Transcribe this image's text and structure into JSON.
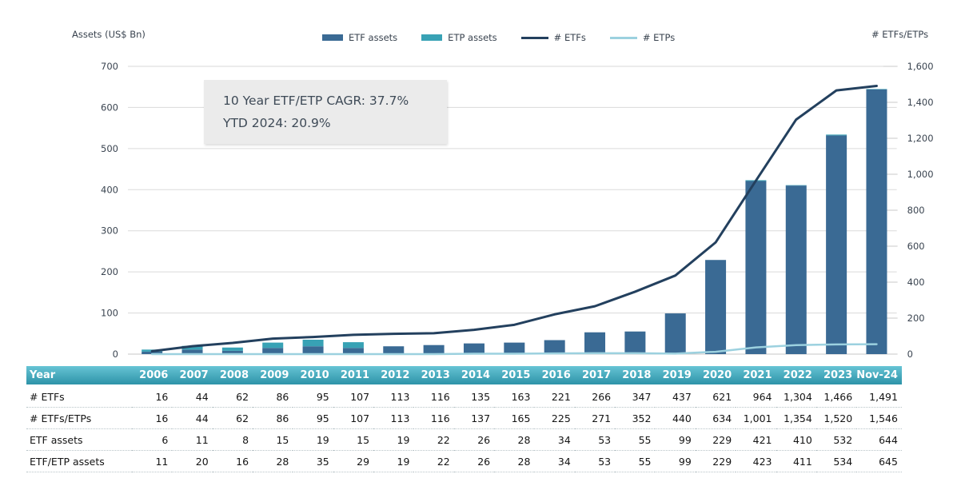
{
  "annotation": {
    "line1": "10 Year ETF/ETP CAGR: 37.7%",
    "line2": "YTD 2024: 20.9%"
  },
  "legend": [
    {
      "label": "ETF assets",
      "type": "bar",
      "color": "#3a6a94"
    },
    {
      "label": "ETP assets",
      "type": "bar",
      "color": "#38a2b5"
    },
    {
      "label": "# ETFs",
      "type": "line",
      "color": "#23405e"
    },
    {
      "label": "# ETPs",
      "type": "line",
      "color": "#9cd1df"
    }
  ],
  "chart_data": {
    "type": "combo",
    "categories": [
      "2006",
      "2007",
      "2008",
      "2009",
      "2010",
      "2011",
      "2012",
      "2013",
      "2014",
      "2015",
      "2016",
      "2017",
      "2018",
      "2019",
      "2020",
      "2021",
      "2022",
      "2023",
      "Nov-24"
    ],
    "series": [
      {
        "name": "ETF assets",
        "type": "bar",
        "axis": "left",
        "stack": "assets",
        "color": "#3a6a94",
        "values": [
          6,
          11,
          8,
          15,
          19,
          15,
          19,
          22,
          26,
          28,
          34,
          53,
          55,
          99,
          229,
          421,
          410,
          532,
          644
        ]
      },
      {
        "name": "ETP assets",
        "type": "bar",
        "axis": "left",
        "stack": "assets",
        "color": "#38a2b5",
        "values": [
          5,
          9,
          8,
          13,
          16,
          14,
          0,
          0,
          0,
          0,
          0,
          0,
          0,
          0,
          0,
          2,
          1,
          2,
          1
        ]
      },
      {
        "name": "# ETFs",
        "type": "line",
        "axis": "right",
        "color": "#23405e",
        "values": [
          16,
          44,
          62,
          86,
          95,
          107,
          113,
          116,
          135,
          163,
          221,
          266,
          347,
          437,
          621,
          964,
          1304,
          1466,
          1491
        ]
      },
      {
        "name": "# ETPs",
        "type": "line",
        "axis": "right",
        "color": "#9cd1df",
        "values": [
          0,
          0,
          0,
          0,
          0,
          0,
          0,
          0,
          2,
          2,
          4,
          5,
          5,
          3,
          13,
          37,
          50,
          54,
          55
        ]
      }
    ],
    "axes": {
      "left": {
        "title": "Assets (US$ Bn)",
        "min": 0,
        "max": 700,
        "tick_values": [
          0,
          100,
          200,
          300,
          400,
          500,
          600,
          700
        ],
        "tick_labels": [
          "0",
          "100",
          "200",
          "300",
          "400",
          "500",
          "600",
          "700"
        ]
      },
      "right": {
        "title": "# ETFs/ETPs",
        "min": 0,
        "max": 1600,
        "tick_values": [
          0,
          200,
          400,
          600,
          800,
          1000,
          1200,
          1400,
          1600
        ],
        "tick_labels": [
          "0",
          "200",
          "400",
          "600",
          "800",
          "1,000",
          "1,200",
          "1,400",
          "1,600"
        ]
      }
    },
    "grid": true,
    "legend_position": "top"
  },
  "table": {
    "header": [
      "Year",
      "2006",
      "2007",
      "2008",
      "2009",
      "2010",
      "2011",
      "2012",
      "2013",
      "2014",
      "2015",
      "2016",
      "2017",
      "2018",
      "2019",
      "2020",
      "2021",
      "2022",
      "2023",
      "Nov-24"
    ],
    "rows": [
      {
        "label": "# ETFs",
        "values": [
          "16",
          "44",
          "62",
          "86",
          "95",
          "107",
          "113",
          "116",
          "135",
          "163",
          "221",
          "266",
          "347",
          "437",
          "621",
          "964",
          "1,304",
          "1,466",
          "1,491"
        ]
      },
      {
        "label": "# ETFs/ETPs",
        "values": [
          "16",
          "44",
          "62",
          "86",
          "95",
          "107",
          "113",
          "116",
          "137",
          "165",
          "225",
          "271",
          "352",
          "440",
          "634",
          "1,001",
          "1,354",
          "1,520",
          "1,546"
        ]
      },
      {
        "label": "ETF assets",
        "values": [
          "6",
          "11",
          "8",
          "15",
          "19",
          "15",
          "19",
          "22",
          "26",
          "28",
          "34",
          "53",
          "55",
          "99",
          "229",
          "421",
          "410",
          "532",
          "644"
        ]
      },
      {
        "label": "ETF/ETP assets",
        "values": [
          "11",
          "20",
          "16",
          "28",
          "35",
          "29",
          "19",
          "22",
          "26",
          "28",
          "34",
          "53",
          "55",
          "99",
          "229",
          "423",
          "411",
          "534",
          "645"
        ]
      }
    ]
  },
  "colors": {
    "etf_bar": "#3a6a94",
    "etp_bar": "#38a2b5",
    "etf_line": "#23405e",
    "etp_line": "#9cd1df",
    "grid": "#dadada",
    "tick_text": "#3a4450",
    "table_header_top": "#66c4d5",
    "table_header_bottom": "#2d93a8",
    "annotation_bg": "#ebebeb"
  }
}
